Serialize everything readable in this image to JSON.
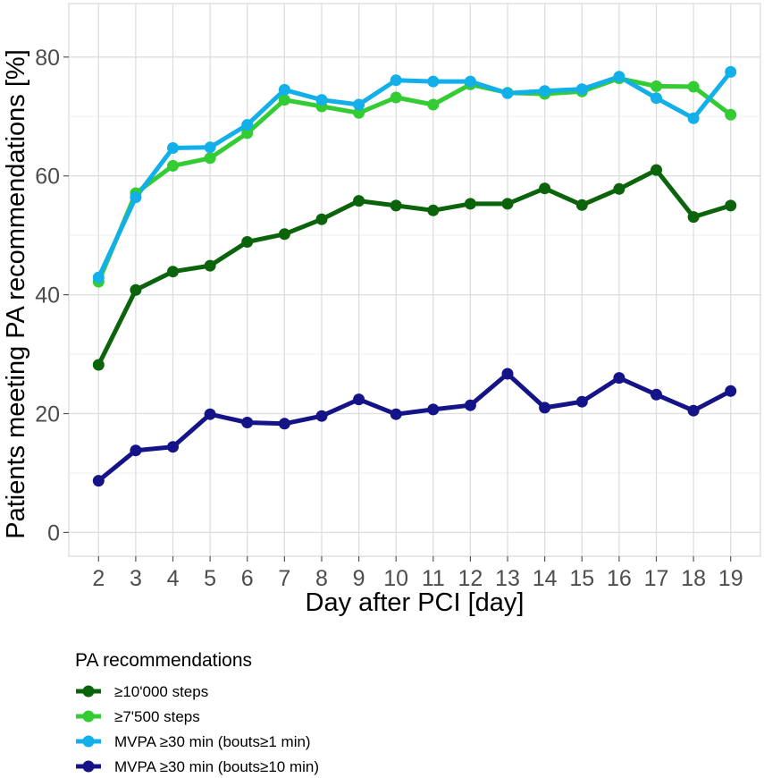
{
  "chart_data": {
    "type": "line",
    "xlabel": "Day after PCI [day]",
    "ylabel": "Patients meeting PA recommendations [%]",
    "x": [
      2,
      3,
      4,
      5,
      6,
      7,
      8,
      9,
      10,
      11,
      12,
      13,
      14,
      15,
      16,
      17,
      18,
      19
    ],
    "yticks": [
      0,
      20,
      40,
      60,
      80
    ],
    "xlim": [
      1.2,
      19.8
    ],
    "ylim": [
      -4,
      89
    ],
    "legend": {
      "title": "PA recommendations",
      "position": "bottom-left"
    },
    "series": [
      {
        "name": "≥10'000 steps",
        "color": "#0b640b",
        "values": [
          28.2,
          40.8,
          43.9,
          44.9,
          48.9,
          50.2,
          52.7,
          55.8,
          55.0,
          54.2,
          55.3,
          55.3,
          57.9,
          55.1,
          57.8,
          61.0,
          53.1,
          55.0
        ]
      },
      {
        "name": "≥7'500 steps",
        "color": "#33cc33",
        "values": [
          42.2,
          57.1,
          61.7,
          63.0,
          67.2,
          72.8,
          71.7,
          70.6,
          73.2,
          72.0,
          75.4,
          74.0,
          73.8,
          74.2,
          76.4,
          75.1,
          75.0,
          70.3
        ]
      },
      {
        "name": "MVPA ≥30 min (bouts≥1 min)",
        "color": "#12afe9",
        "values": [
          42.9,
          56.4,
          64.7,
          64.8,
          68.6,
          74.5,
          72.8,
          72.0,
          76.1,
          75.9,
          75.9,
          73.9,
          74.3,
          74.6,
          76.7,
          73.1,
          69.7,
          77.5
        ]
      },
      {
        "name": "MVPA ≥30 min (bouts≥10 min)",
        "color": "#141488",
        "values": [
          8.7,
          13.8,
          14.4,
          19.9,
          18.5,
          18.3,
          19.6,
          22.4,
          19.9,
          20.7,
          21.4,
          26.7,
          21.0,
          22.0,
          26.0,
          23.2,
          20.5,
          23.8
        ]
      }
    ]
  }
}
